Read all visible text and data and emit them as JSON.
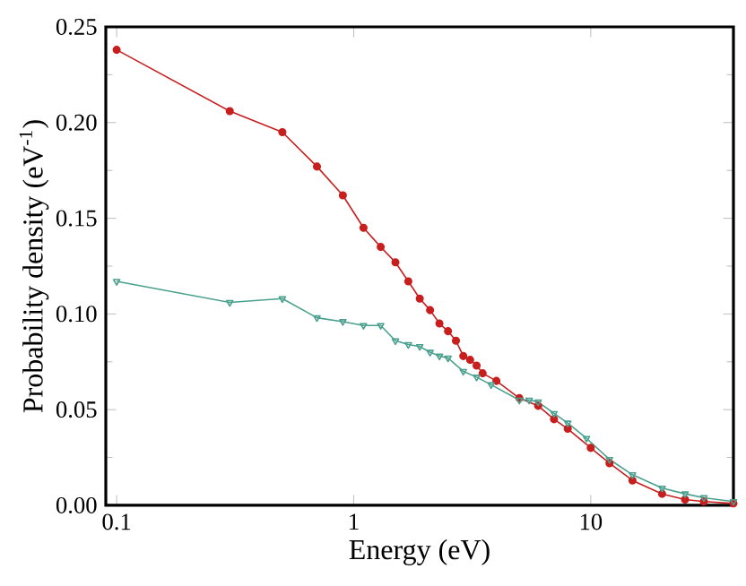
{
  "chart_data": {
    "type": "line",
    "xlabel": "Energy  (eV)",
    "ylabel": "Probability density (eV$^{-1}$)",
    "log": "x",
    "xlim": [
      0.09,
      40
    ],
    "ylim": [
      0,
      0.25
    ],
    "xticks": [
      0.1,
      1,
      10
    ],
    "yticks": [
      {
        "value": 0,
        "label": "0.00"
      },
      {
        "value": 0.05,
        "label": "0.05"
      },
      {
        "value": 0.1,
        "label": "0.10"
      },
      {
        "value": 0.15,
        "label": "0.15"
      },
      {
        "value": 0.2,
        "label": "0.20"
      },
      {
        "value": 0.25,
        "label": "0.25"
      }
    ],
    "grid": false,
    "series": [
      {
        "color": "#c81e1e",
        "marker": "circle",
        "x": [
          0.1,
          0.3,
          0.5,
          0.7,
          0.9,
          1.1,
          1.3,
          1.5,
          1.7,
          1.9,
          2.1,
          2.3,
          2.5,
          2.7,
          2.9,
          3.1,
          3.3,
          3.5,
          4,
          5,
          6,
          7,
          8,
          10,
          12,
          15,
          20,
          25,
          30,
          40
        ],
        "values": [
          0.238,
          0.206,
          0.195,
          0.177,
          0.162,
          0.145,
          0.135,
          0.127,
          0.117,
          0.108,
          0.102,
          0.095,
          0.091,
          0.086,
          0.078,
          0.076,
          0.073,
          0.069,
          0.065,
          0.056,
          0.052,
          0.045,
          0.04,
          0.03,
          0.022,
          0.013,
          0.006,
          0.003,
          0.002,
          0.001
        ]
      },
      {
        "color": "#4aa08e",
        "marker": "triangle",
        "x": [
          0.1,
          0.3,
          0.5,
          0.7,
          0.9,
          1.1,
          1.3,
          1.5,
          1.7,
          1.9,
          2.1,
          2.3,
          2.5,
          2.9,
          3.3,
          3.8,
          5,
          5.5,
          6,
          7,
          8,
          9.6,
          12,
          15,
          20,
          25,
          30,
          40
        ],
        "values": [
          0.117,
          0.106,
          0.108,
          0.098,
          0.096,
          0.094,
          0.094,
          0.086,
          0.084,
          0.083,
          0.08,
          0.078,
          0.077,
          0.07,
          0.067,
          0.063,
          0.055,
          0.055,
          0.054,
          0.048,
          0.043,
          0.035,
          0.024,
          0.016,
          0.009,
          0.006,
          0.004,
          0.002
        ]
      }
    ]
  }
}
